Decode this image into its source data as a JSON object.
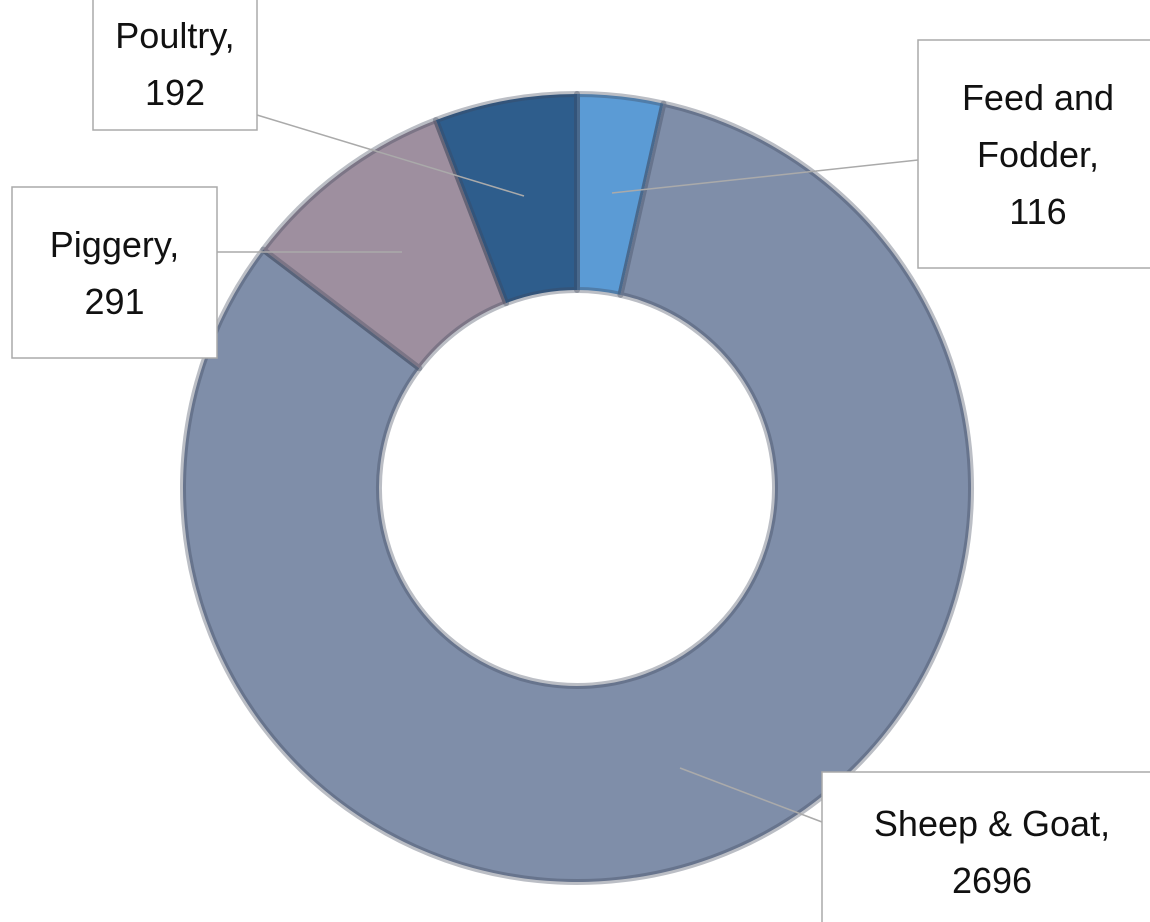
{
  "chart_data": {
    "type": "donut",
    "categories": [
      "Feed and Fodder",
      "Sheep & Goat",
      "Piggery",
      "Poultry"
    ],
    "values": [
      116,
      2696,
      291,
      192
    ],
    "colors": [
      "#5b9bd5",
      "#7f8ea9",
      "#9e8f9f",
      "#2e5d8c"
    ],
    "label_separator": ","
  }
}
